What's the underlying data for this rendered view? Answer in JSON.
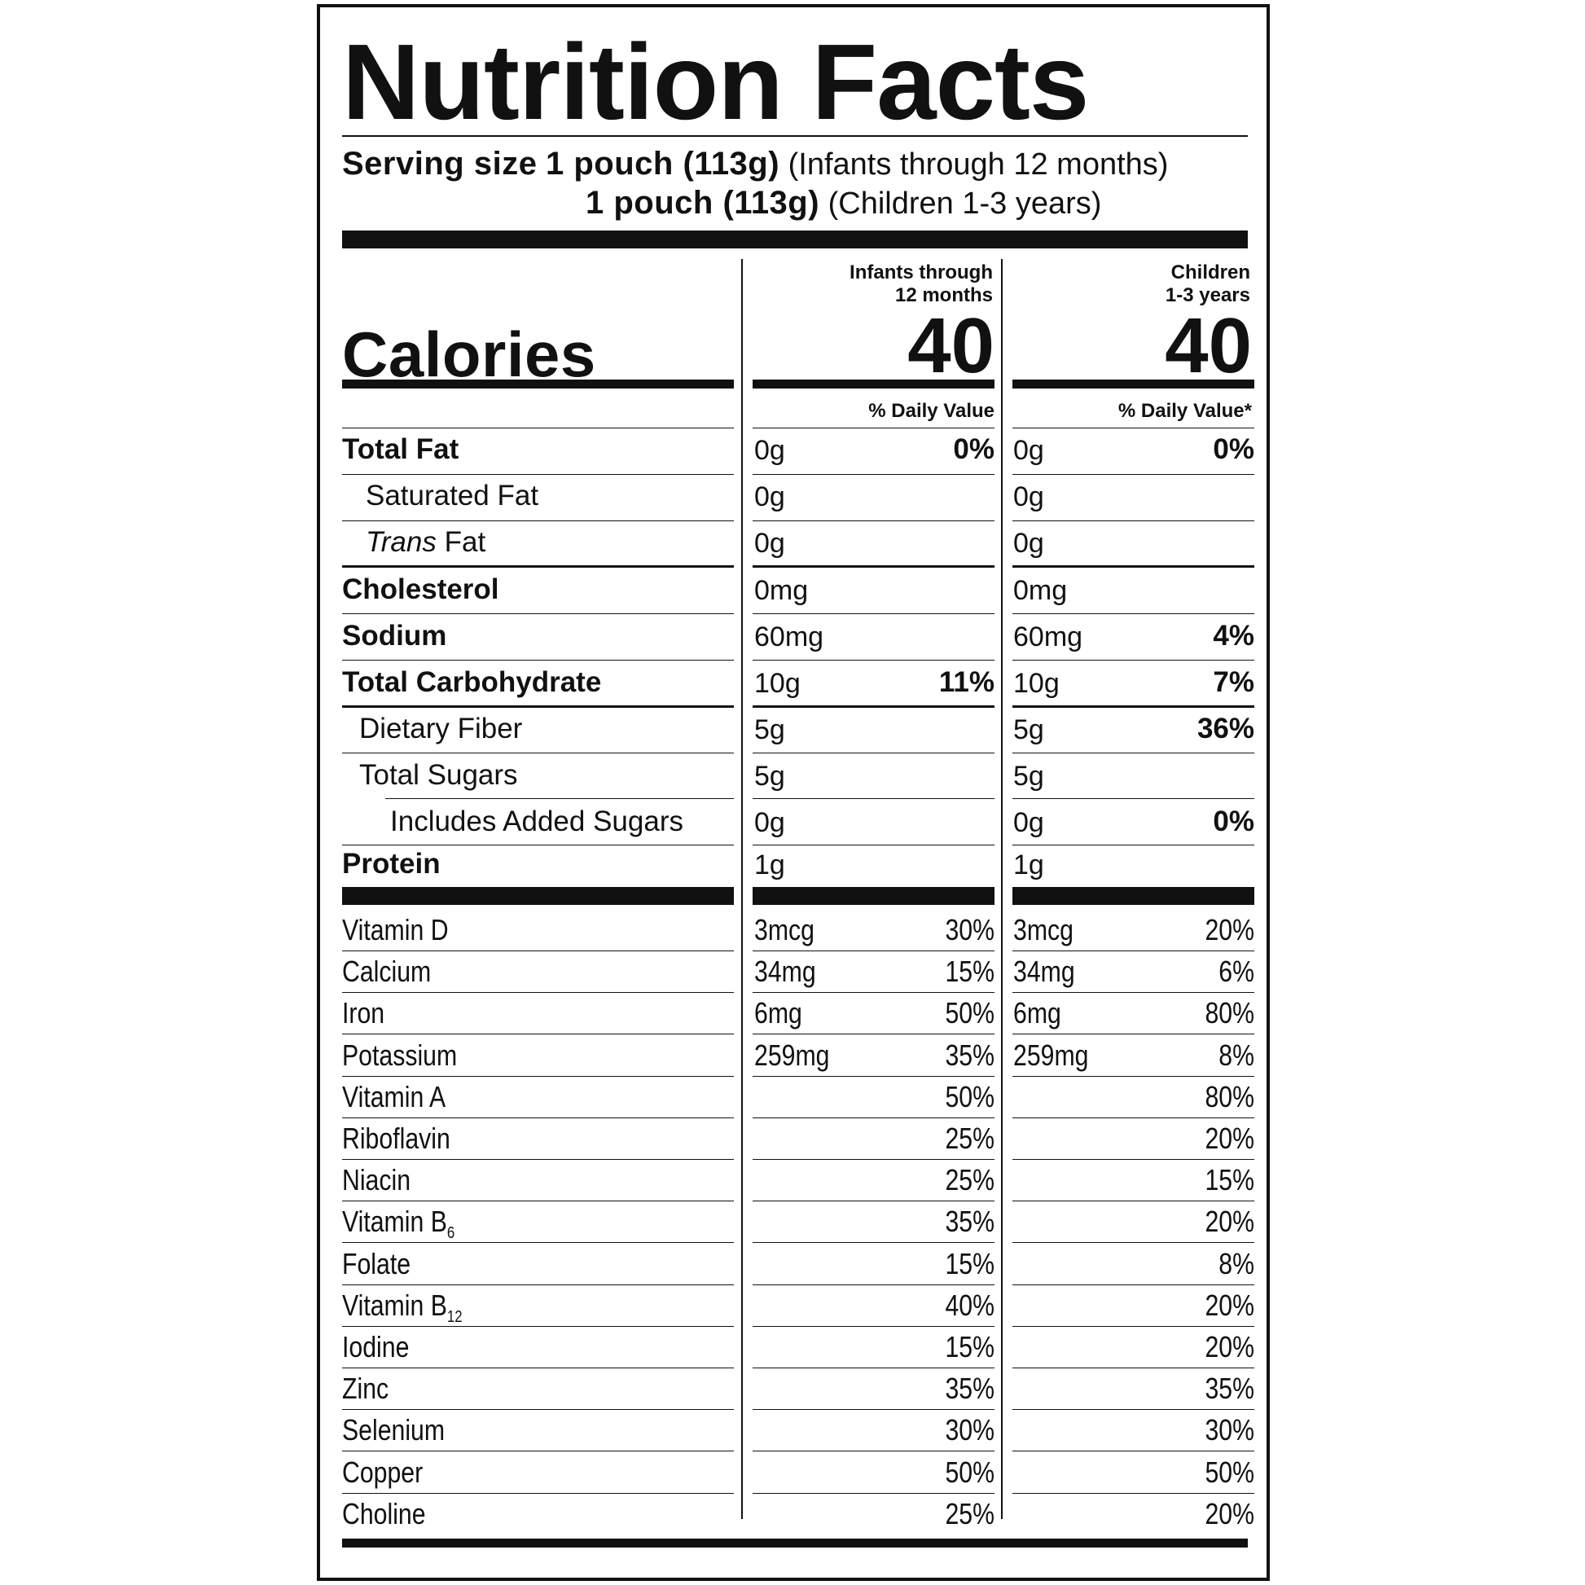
{
  "title": "Nutrition Facts",
  "serving": {
    "label": "Serving size",
    "infant_amount": "1 pouch (113g)",
    "infant_group": "(Infants through 12 months)",
    "child_amount": "1 pouch (113g)",
    "child_group": "(Children 1-3 years)"
  },
  "columns": {
    "infant_head_1": "Infants through",
    "infant_head_2": "12 months",
    "child_head_1": "Children",
    "child_head_2": "1-3 years",
    "infant_dv": "% Daily Value",
    "child_dv": "% Daily Value*"
  },
  "calories": {
    "label": "Calories",
    "infant": "40",
    "child": "40"
  },
  "nutrients": {
    "total_fat": {
      "label": "Total Fat",
      "infant_amt": "0g",
      "infant_pct": "0%",
      "child_amt": "0g",
      "child_pct": "0%"
    },
    "sat_fat": {
      "label": "Saturated Fat",
      "infant_amt": "0g",
      "child_amt": "0g"
    },
    "trans_fat": {
      "label_italic": "Trans",
      "label_rest": " Fat",
      "infant_amt": "0g",
      "child_amt": "0g"
    },
    "cholesterol": {
      "label": "Cholesterol",
      "infant_amt": "0mg",
      "child_amt": "0mg"
    },
    "sodium": {
      "label": "Sodium",
      "infant_amt": "60mg",
      "child_amt": "60mg",
      "child_pct": "4%"
    },
    "carb": {
      "label": "Total Carbohydrate",
      "infant_amt": "10g",
      "infant_pct": "11%",
      "child_amt": "10g",
      "child_pct": "7%"
    },
    "fiber": {
      "label": "Dietary Fiber",
      "infant_amt": "5g",
      "child_amt": "5g",
      "child_pct": "36%"
    },
    "sugars": {
      "label": "Total Sugars",
      "infant_amt": "5g",
      "child_amt": "5g"
    },
    "added_sugars": {
      "label": "Includes Added Sugars",
      "infant_amt": "0g",
      "child_amt": "0g",
      "child_pct": "0%"
    },
    "protein": {
      "label": "Protein",
      "infant_amt": "1g",
      "child_amt": "1g"
    }
  },
  "vitamins": [
    {
      "label": "Vitamin D",
      "infant_amt": "3mcg",
      "infant_pct": "30%",
      "child_amt": "3mcg",
      "child_pct": "20%"
    },
    {
      "label": "Calcium",
      "infant_amt": "34mg",
      "infant_pct": "15%",
      "child_amt": "34mg",
      "child_pct": "6%"
    },
    {
      "label": "Iron",
      "infant_amt": "6mg",
      "infant_pct": "50%",
      "child_amt": "6mg",
      "child_pct": "80%"
    },
    {
      "label": "Potassium",
      "infant_amt": "259mg",
      "infant_pct": "35%",
      "child_amt": "259mg",
      "child_pct": "8%"
    },
    {
      "label": "Vitamin A",
      "infant_amt": "",
      "infant_pct": "50%",
      "child_amt": "",
      "child_pct": "80%"
    },
    {
      "label": "Riboflavin",
      "infant_amt": "",
      "infant_pct": "25%",
      "child_amt": "",
      "child_pct": "20%"
    },
    {
      "label": "Niacin",
      "infant_amt": "",
      "infant_pct": "25%",
      "child_amt": "",
      "child_pct": "15%"
    },
    {
      "label": "Vitamin B",
      "sub": "6",
      "infant_amt": "",
      "infant_pct": "35%",
      "child_amt": "",
      "child_pct": "20%"
    },
    {
      "label": "Folate",
      "infant_amt": "",
      "infant_pct": "15%",
      "child_amt": "",
      "child_pct": "8%"
    },
    {
      "label": "Vitamin B",
      "sub": "12",
      "infant_amt": "",
      "infant_pct": "40%",
      "child_amt": "",
      "child_pct": "20%"
    },
    {
      "label": "Iodine",
      "infant_amt": "",
      "infant_pct": "15%",
      "child_amt": "",
      "child_pct": "20%"
    },
    {
      "label": "Zinc",
      "infant_amt": "",
      "infant_pct": "35%",
      "child_amt": "",
      "child_pct": "35%"
    },
    {
      "label": "Selenium",
      "infant_amt": "",
      "infant_pct": "30%",
      "child_amt": "",
      "child_pct": "30%"
    },
    {
      "label": "Copper",
      "infant_amt": "",
      "infant_pct": "50%",
      "child_amt": "",
      "child_pct": "50%"
    },
    {
      "label": "Choline",
      "infant_amt": "",
      "infant_pct": "25%",
      "child_amt": "",
      "child_pct": "20%"
    }
  ]
}
